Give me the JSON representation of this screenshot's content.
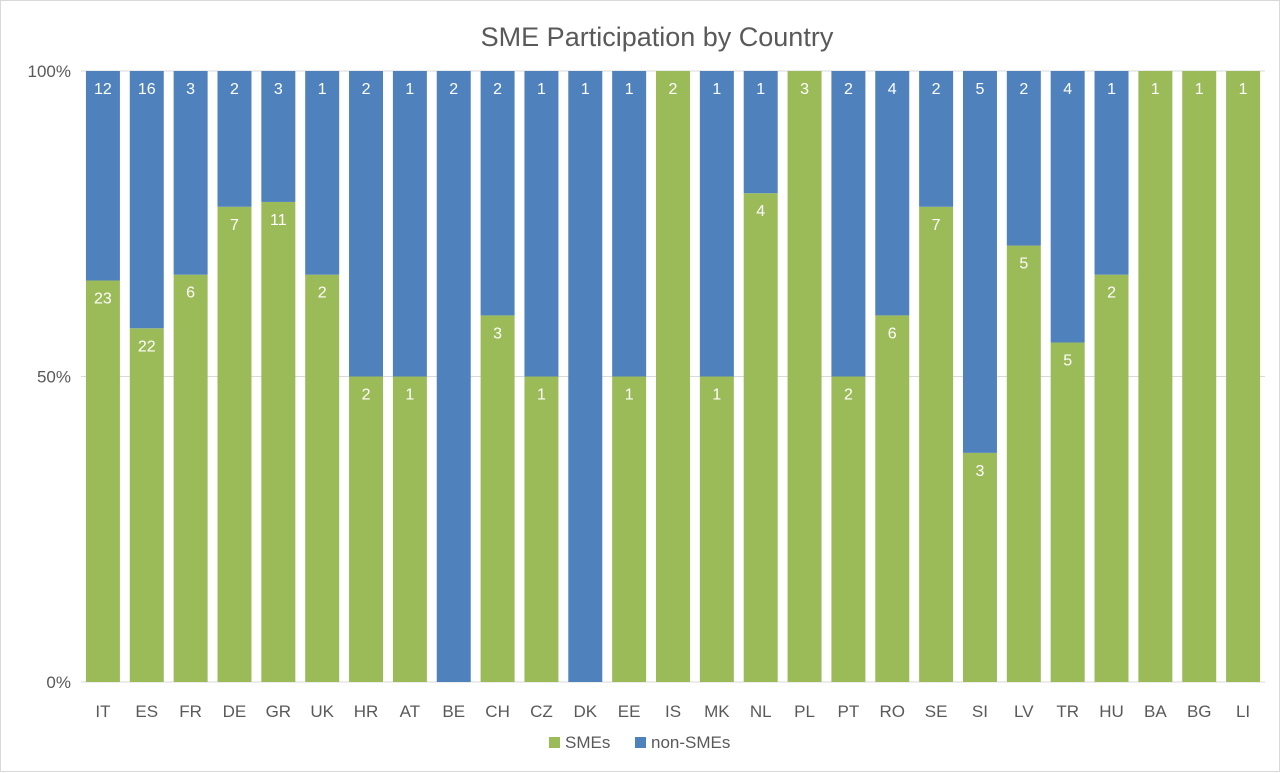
{
  "chart_data": {
    "type": "bar",
    "stacked": "percent",
    "title": "SME Participation by Country",
    "xlabel": "",
    "ylabel": "",
    "ylim": [
      0,
      100
    ],
    "y_ticks": [
      "0%",
      "50%",
      "100%"
    ],
    "grid": true,
    "legend_position": "bottom",
    "categories": [
      "IT",
      "ES",
      "FR",
      "DE",
      "GR",
      "UK",
      "HR",
      "AT",
      "BE",
      "CH",
      "CZ",
      "DK",
      "EE",
      "IS",
      "MK",
      "NL",
      "PL",
      "PT",
      "RO",
      "SE",
      "SI",
      "LV",
      "TR",
      "HU",
      "BA",
      "BG",
      "LI"
    ],
    "series": [
      {
        "name": "SMEs",
        "color": "#9bbb59",
        "values": [
          23,
          22,
          6,
          7,
          11,
          2,
          2,
          1,
          0,
          3,
          1,
          0,
          1,
          2,
          1,
          4,
          3,
          2,
          6,
          7,
          3,
          5,
          5,
          2,
          1,
          1,
          1
        ]
      },
      {
        "name": "non-SMEs",
        "color": "#4f81bd",
        "values": [
          12,
          16,
          3,
          2,
          3,
          1,
          2,
          1,
          2,
          2,
          1,
          1,
          1,
          0,
          1,
          1,
          0,
          2,
          4,
          2,
          5,
          2,
          4,
          1,
          0,
          0,
          0
        ]
      }
    ]
  }
}
